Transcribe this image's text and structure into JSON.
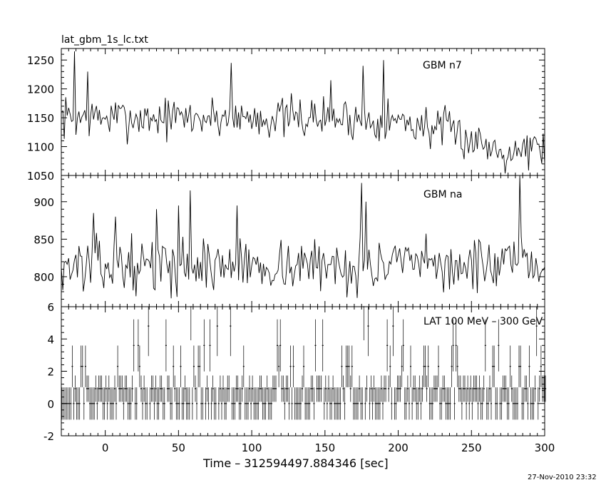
{
  "figure": {
    "file_title": "lat_gbm_1s_lc.txt",
    "timestamp": "27-Nov-2010 23:32"
  },
  "chart_data": [
    {
      "type": "line",
      "panel": "top",
      "title": "lat_gbm_1s_lc.txt",
      "annotation": "GBM n7",
      "xlabel": "",
      "ylabel": "",
      "xlim": [
        -30,
        300
      ],
      "ylim": [
        1050,
        1270
      ],
      "yticks": [
        1050,
        1100,
        1150,
        1200,
        1250
      ],
      "series": [
        {
          "bin": 1,
          "baseline": 1150,
          "noise": 40,
          "seed": 7,
          "trend": [
            [
              -30,
              1150
            ],
            [
              150,
              1150
            ],
            [
              200,
              1145
            ],
            [
              230,
              1130
            ],
            [
              270,
              1095
            ],
            [
              300,
              1100
            ]
          ],
          "spikes": [
            [
              -21,
              1265
            ],
            [
              -12,
              1230
            ],
            [
              86,
              1245
            ],
            [
              154,
              1215
            ],
            [
              176,
              1240
            ],
            [
              190,
              1250
            ]
          ]
        }
      ],
      "grid": false
    },
    {
      "type": "line",
      "panel": "middle",
      "annotation": "GBM na",
      "xlabel": "",
      "ylabel": "",
      "xlim": [
        -30,
        300
      ],
      "ylim": [
        760,
        935
      ],
      "yticks": [
        800,
        850,
        900
      ],
      "series": [
        {
          "bin": 1,
          "baseline": 820,
          "noise": 38,
          "seed": 13,
          "trend": [
            [
              -30,
              815
            ],
            [
              300,
              815
            ]
          ],
          "spikes": [
            [
              -8,
              885
            ],
            [
              7,
              880
            ],
            [
              35,
              890
            ],
            [
              50,
              895
            ],
            [
              58,
              915
            ],
            [
              90,
              895
            ],
            [
              175,
              925
            ],
            [
              178,
              900
            ],
            [
              283,
              935
            ]
          ]
        }
      ],
      "grid": false
    },
    {
      "type": "line",
      "panel": "bottom",
      "annotation": "LAT 100 MeV – 300 GeV",
      "xlabel": "Time – 312594497.884346 [sec]",
      "ylabel": "",
      "xlim": [
        -30,
        300
      ],
      "ylim": [
        -2,
        6
      ],
      "yticks": [
        -2,
        0,
        2,
        4,
        6
      ],
      "xticks": [
        0,
        50,
        100,
        150,
        200,
        250,
        300
      ],
      "series": [
        {
          "bin": 1,
          "levels": [
            0,
            0.92,
            2.3,
            3.6,
            4.8,
            6
          ],
          "level_probs": [
            0.48,
            0.32,
            0.14,
            0.05,
            0.01
          ],
          "errbar_half": 1,
          "seed": 21,
          "spikes": [
            [
              29,
              4.8
            ],
            [
              58,
              6
            ],
            [
              85,
              4.8
            ],
            [
              176,
              6
            ]
          ],
          "quiet": [
            [
              -30,
              -28
            ]
          ]
        }
      ],
      "grid": false
    }
  ]
}
